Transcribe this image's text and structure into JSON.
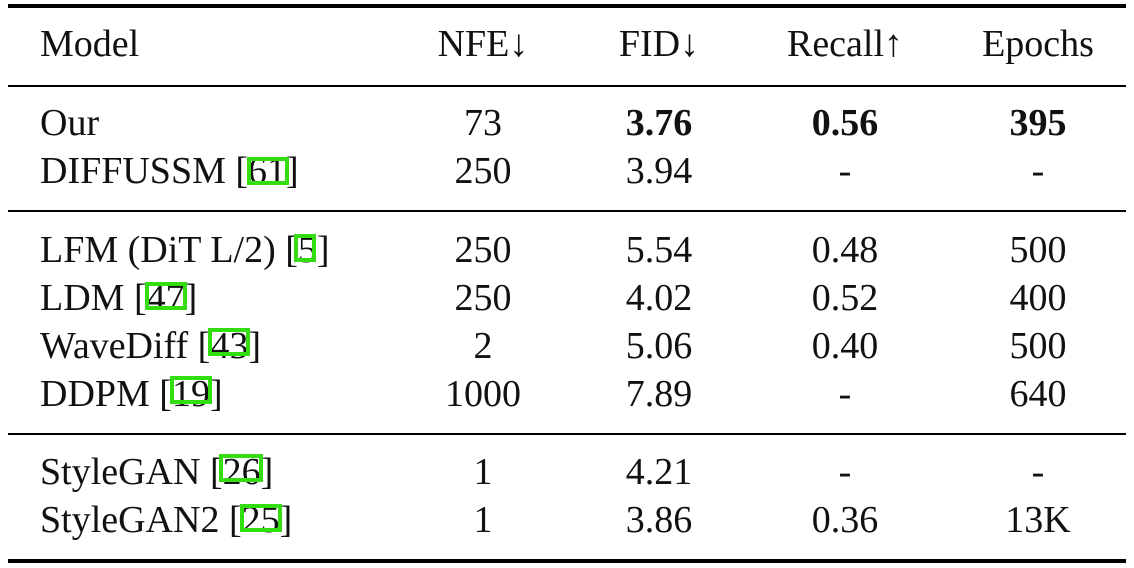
{
  "table": {
    "headers": {
      "model": "Model",
      "nfe": "NFE↓",
      "fid": "FID↓",
      "recall": "Recall↑",
      "epochs": "Epochs"
    },
    "rows": [
      {
        "model": "Our",
        "cite": "",
        "nfe": "73",
        "fid": "3.76",
        "recall": "0.56",
        "epochs": "395"
      },
      {
        "model": "DIFFUSSM [",
        "cite": "61",
        "close": "]",
        "nfe": "250",
        "fid": "3.94",
        "recall": "-",
        "epochs": "-"
      },
      {
        "model": "LFM (DiT L/2) [",
        "cite": "5",
        "close": "]",
        "nfe": "250",
        "fid": "5.54",
        "recall": "0.48",
        "epochs": "500"
      },
      {
        "model": "LDM [",
        "cite": "47",
        "close": "]",
        "nfe": "250",
        "fid": "4.02",
        "recall": "0.52",
        "epochs": "400"
      },
      {
        "model": "WaveDiff [",
        "cite": "43",
        "close": "]",
        "nfe": "2",
        "fid": "5.06",
        "recall": "0.40",
        "epochs": "500"
      },
      {
        "model": "DDPM [",
        "cite": "19",
        "close": "]",
        "nfe": "1000",
        "fid": "7.89",
        "recall": "-",
        "epochs": "640"
      },
      {
        "model": "StyleGAN [",
        "cite": "26",
        "close": "]",
        "nfe": "1",
        "fid": "4.21",
        "recall": "-",
        "epochs": "-"
      },
      {
        "model": "StyleGAN2 [",
        "cite": "25",
        "close": "]",
        "nfe": "1",
        "fid": "3.86",
        "recall": "0.36",
        "epochs": "13K"
      }
    ]
  },
  "colors": {
    "text": "#111111",
    "rule": "#000000",
    "citation_box": "#33dd11"
  }
}
